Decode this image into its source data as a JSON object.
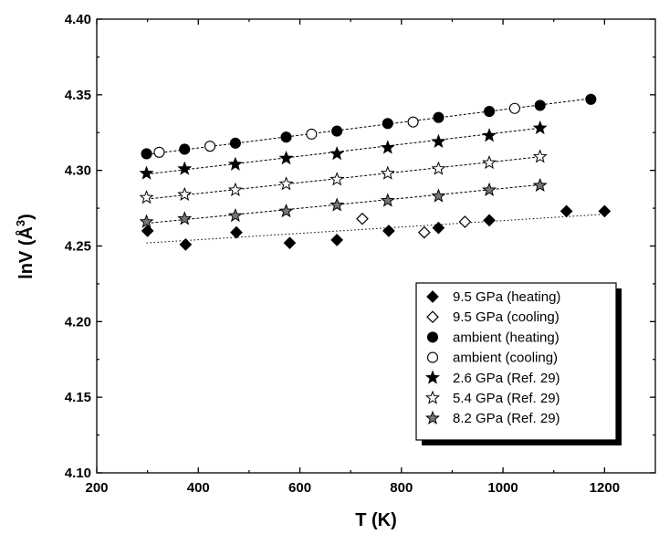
{
  "chart_data": {
    "type": "scatter",
    "xlabel": "T (K)",
    "ylabel_main": "lnV (Å",
    "ylabel_sup": "3",
    "ylabel_close": ")",
    "xlim": [
      200,
      1300
    ],
    "ylim": [
      4.1,
      4.4
    ],
    "xticks": [
      "200",
      "400",
      "600",
      "800",
      "1000",
      "1200"
    ],
    "yticks": [
      "4.10",
      "4.15",
      "4.20",
      "4.25",
      "4.30",
      "4.35",
      "4.40"
    ],
    "legend_position": "bottom-right",
    "series": [
      {
        "name": "9.5 GPa (heating)",
        "marker": "diamond",
        "fill": "filled",
        "x": [
          300,
          375,
          475,
          580,
          673,
          775,
          873,
          973,
          1125,
          1200
        ],
        "y": [
          4.26,
          4.251,
          4.259,
          4.252,
          4.254,
          4.26,
          4.262,
          4.267,
          4.273,
          4.273
        ]
      },
      {
        "name": "9.5 GPa (cooling)",
        "marker": "diamond",
        "fill": "open",
        "x": [
          723,
          845,
          925
        ],
        "y": [
          4.268,
          4.259,
          4.266
        ]
      },
      {
        "name": "ambient (heating)",
        "marker": "circle",
        "fill": "filled",
        "x": [
          298,
          373,
          473,
          573,
          673,
          773,
          873,
          973,
          1073,
          1173
        ],
        "y": [
          4.311,
          4.314,
          4.318,
          4.322,
          4.326,
          4.331,
          4.335,
          4.339,
          4.343,
          4.347
        ]
      },
      {
        "name": "ambient (cooling)",
        "marker": "circle",
        "fill": "open",
        "x": [
          323,
          423,
          623,
          823,
          1023
        ],
        "y": [
          4.312,
          4.316,
          4.324,
          4.332,
          4.341
        ]
      },
      {
        "name": "2.6 GPa (Ref. 29)",
        "marker": "star",
        "fill": "filled",
        "x": [
          298,
          373,
          473,
          573,
          673,
          773,
          873,
          973,
          1073
        ],
        "y": [
          4.298,
          4.301,
          4.304,
          4.308,
          4.311,
          4.315,
          4.319,
          4.323,
          4.328
        ]
      },
      {
        "name": "5.4 GPa (Ref. 29)",
        "marker": "star",
        "fill": "open",
        "x": [
          298,
          373,
          473,
          573,
          673,
          773,
          873,
          973,
          1073
        ],
        "y": [
          4.282,
          4.284,
          4.287,
          4.291,
          4.294,
          4.298,
          4.301,
          4.305,
          4.309
        ]
      },
      {
        "name": "8.2 GPa (Ref. 29)",
        "marker": "star",
        "fill": "dotted",
        "x": [
          298,
          373,
          473,
          573,
          673,
          773,
          873,
          973,
          1073
        ],
        "y": [
          4.266,
          4.268,
          4.27,
          4.273,
          4.277,
          4.28,
          4.283,
          4.287,
          4.29
        ]
      }
    ],
    "fit_lines": [
      {
        "series": "ambient",
        "style": "dashed",
        "x": [
          298,
          1173
        ],
        "y": [
          4.3105,
          4.3475
        ]
      },
      {
        "series": "2.6 GPa",
        "style": "dashed",
        "x": [
          298,
          1073
        ],
        "y": [
          4.2975,
          4.328
        ]
      },
      {
        "series": "5.4 GPa",
        "style": "dashed",
        "x": [
          298,
          1073
        ],
        "y": [
          4.281,
          4.309
        ]
      },
      {
        "series": "8.2 GPa",
        "style": "dashed",
        "x": [
          298,
          1073
        ],
        "y": [
          4.265,
          4.2905
        ]
      },
      {
        "series": "9.5 GPa",
        "style": "dotted",
        "x": [
          298,
          1200
        ],
        "y": [
          4.252,
          4.271
        ]
      }
    ]
  }
}
